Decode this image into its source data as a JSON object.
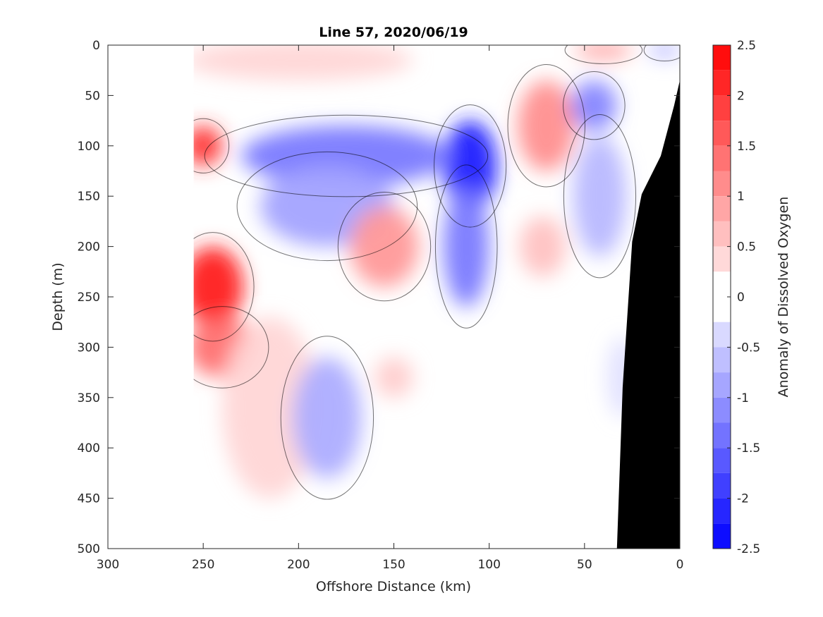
{
  "chart_data": {
    "type": "heatmap",
    "subtype": "filled contour section",
    "title": "Line 57, 2020/06/19",
    "xlabel": "Offshore Distance (km)",
    "ylabel": "Depth (m)",
    "colorbar_label": "Anomaly of Dissolved Oxygen",
    "x_reversed": true,
    "y_reversed": true,
    "xlim": [
      0,
      300
    ],
    "ylim": [
      0,
      500
    ],
    "xticks": [
      "300",
      "250",
      "200",
      "150",
      "100",
      "50",
      "0"
    ],
    "xtick_values": [
      300,
      250,
      200,
      150,
      100,
      50,
      0
    ],
    "yticks": [
      "0",
      "50",
      "100",
      "150",
      "200",
      "250",
      "300",
      "350",
      "400",
      "450",
      "500"
    ],
    "ytick_values": [
      0,
      50,
      100,
      150,
      200,
      250,
      300,
      350,
      400,
      450,
      500
    ],
    "colorbar": {
      "range": [
        -2.5,
        2.5
      ],
      "step": 0.25,
      "tick_labels": [
        "2.5",
        "2",
        "1.5",
        "1",
        "0.5",
        "0",
        "-0.5",
        "-1",
        "-1.5",
        "-2",
        "-2.5"
      ],
      "tick_values": [
        2.5,
        2,
        1.5,
        1,
        0.5,
        0,
        -0.5,
        -1,
        -1.5,
        -2,
        -2.5
      ],
      "colormap": "blue-white-red",
      "positive_color": "#ff0000",
      "negative_color": "#0000ff",
      "zero_color": "#ffffff"
    },
    "data_extent_x": [
      0,
      255
    ],
    "bathymetry_color": "#000000",
    "bathymetry": [
      [
        33,
        500
      ],
      [
        30,
        340
      ],
      [
        25,
        195
      ],
      [
        20,
        148
      ],
      [
        10,
        110
      ],
      [
        3,
        60
      ],
      [
        0,
        35
      ]
    ],
    "field_features": [
      {
        "x": 245,
        "y": 240,
        "value": 2.25,
        "rx": 16,
        "ry": 40
      },
      {
        "x": 250,
        "y": 100,
        "value": 2.0,
        "rx": 10,
        "ry": 20
      },
      {
        "x": 240,
        "y": 300,
        "value": 1.4,
        "rx": 18,
        "ry": 30
      },
      {
        "x": 215,
        "y": 360,
        "value": 0.4,
        "rx": 25,
        "ry": 90
      },
      {
        "x": 200,
        "y": 15,
        "value": 0.4,
        "rx": 60,
        "ry": 20
      },
      {
        "x": 110,
        "y": 120,
        "value": -2.2,
        "rx": 14,
        "ry": 45
      },
      {
        "x": 112,
        "y": 200,
        "value": -1.3,
        "rx": 12,
        "ry": 60
      },
      {
        "x": 175,
        "y": 110,
        "value": -1.3,
        "rx": 55,
        "ry": 30
      },
      {
        "x": 185,
        "y": 160,
        "value": -0.9,
        "rx": 35,
        "ry": 40
      },
      {
        "x": 155,
        "y": 200,
        "value": 1.0,
        "rx": 18,
        "ry": 40
      },
      {
        "x": 150,
        "y": 330,
        "value": 0.5,
        "rx": 10,
        "ry": 20
      },
      {
        "x": 70,
        "y": 80,
        "value": 1.1,
        "rx": 15,
        "ry": 45
      },
      {
        "x": 72,
        "y": 200,
        "value": 0.6,
        "rx": 12,
        "ry": 30
      },
      {
        "x": 45,
        "y": 60,
        "value": -1.2,
        "rx": 12,
        "ry": 25
      },
      {
        "x": 42,
        "y": 150,
        "value": -0.7,
        "rx": 14,
        "ry": 60
      },
      {
        "x": 185,
        "y": 370,
        "value": -0.8,
        "rx": 18,
        "ry": 60
      },
      {
        "x": 30,
        "y": 330,
        "value": -0.3,
        "rx": 8,
        "ry": 40
      },
      {
        "x": 40,
        "y": 5,
        "value": 0.8,
        "rx": 15,
        "ry": 10
      },
      {
        "x": 8,
        "y": 5,
        "value": -0.7,
        "rx": 8,
        "ry": 8
      }
    ]
  }
}
